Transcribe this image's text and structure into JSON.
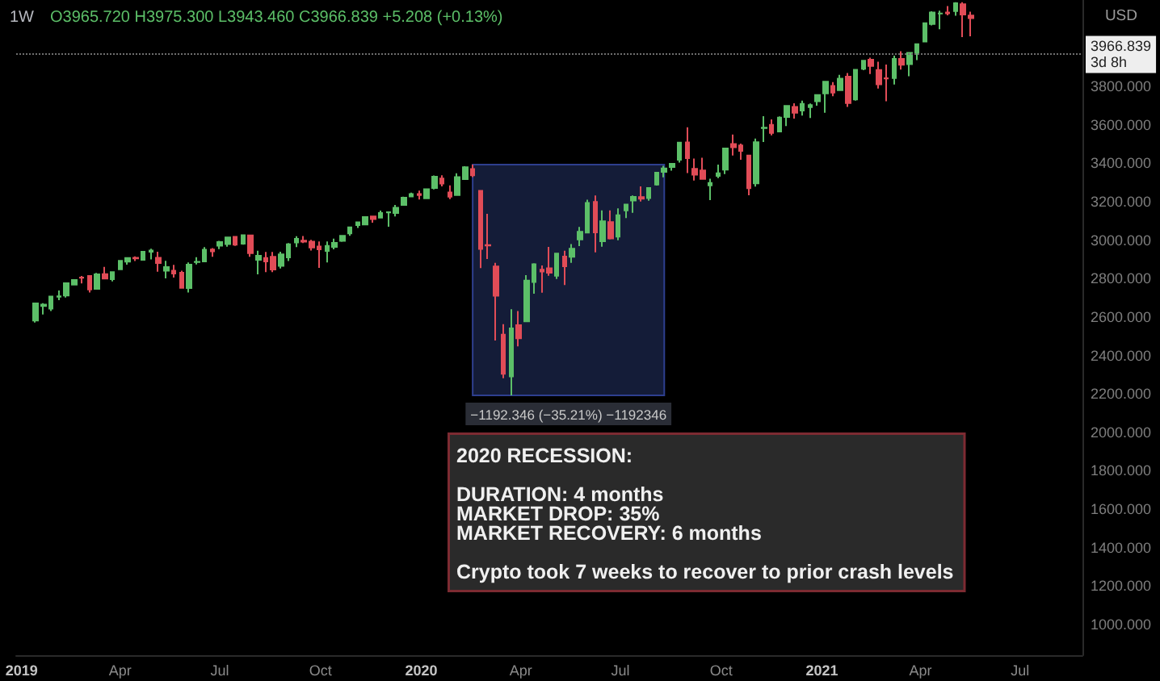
{
  "chart_data": {
    "type": "candlestick",
    "title": "1W",
    "subtitle": "O3965.720 H3975.300 L3943.460 C3966.839 +5.208 (+0.13%)",
    "ylabel": "USD",
    "x": [
      "2019-01-14",
      "2019-01-21",
      "2019-01-28",
      "2019-02-04",
      "2019-02-11",
      "2019-02-18",
      "2019-02-25",
      "2019-03-04",
      "2019-03-11",
      "2019-03-18",
      "2019-03-25",
      "2019-04-01",
      "2019-04-08",
      "2019-04-15",
      "2019-04-22",
      "2019-04-29",
      "2019-05-06",
      "2019-05-13",
      "2019-05-20",
      "2019-05-27",
      "2019-06-03",
      "2019-06-10",
      "2019-06-17",
      "2019-06-24",
      "2019-07-01",
      "2019-07-08",
      "2019-07-15",
      "2019-07-22",
      "2019-07-29",
      "2019-08-05",
      "2019-08-12",
      "2019-08-19",
      "2019-08-26",
      "2019-09-02",
      "2019-09-09",
      "2019-09-16",
      "2019-09-23",
      "2019-09-30",
      "2019-10-07",
      "2019-10-14",
      "2019-10-21",
      "2019-10-28",
      "2019-11-04",
      "2019-11-11",
      "2019-11-18",
      "2019-11-25",
      "2019-12-02",
      "2019-12-09",
      "2019-12-16",
      "2019-12-23",
      "2019-12-30",
      "2020-01-06",
      "2020-01-13",
      "2020-01-20",
      "2020-01-27",
      "2020-02-03",
      "2020-02-10",
      "2020-02-17",
      "2020-02-24",
      "2020-03-02",
      "2020-03-09",
      "2020-03-16",
      "2020-03-23",
      "2020-03-30",
      "2020-04-06",
      "2020-04-13",
      "2020-04-20",
      "2020-04-27",
      "2020-05-04",
      "2020-05-11",
      "2020-05-18",
      "2020-05-25",
      "2020-06-01",
      "2020-06-08",
      "2020-06-15",
      "2020-06-22",
      "2020-06-29",
      "2020-07-06",
      "2020-07-13",
      "2020-07-20",
      "2020-07-27",
      "2020-08-03",
      "2020-08-10",
      "2020-08-17",
      "2020-08-24",
      "2020-08-31",
      "2020-09-07",
      "2020-09-14",
      "2020-09-21",
      "2020-09-28",
      "2020-10-05",
      "2020-10-12",
      "2020-10-19",
      "2020-10-26",
      "2020-11-02",
      "2020-11-09",
      "2020-11-16",
      "2020-11-23",
      "2020-11-30",
      "2020-12-07",
      "2020-12-14",
      "2020-12-21",
      "2020-12-28",
      "2021-01-04",
      "2021-01-11",
      "2021-01-18",
      "2021-01-25",
      "2021-02-01",
      "2021-02-08",
      "2021-02-15",
      "2021-02-22",
      "2021-03-01",
      "2021-03-08",
      "2021-03-15",
      "2021-03-22",
      "2021-03-29",
      "2021-04-05",
      "2021-04-12",
      "2021-04-19",
      "2021-04-26",
      "2021-05-03",
      "2021-05-10",
      "2021-05-17"
    ],
    "ohlc": [
      [
        2582,
        2675,
        2571,
        2671
      ],
      [
        2657,
        2672,
        2613,
        2665
      ],
      [
        2644,
        2708,
        2631,
        2707
      ],
      [
        2706,
        2738,
        2688,
        2708
      ],
      [
        2712,
        2776,
        2701,
        2776
      ],
      [
        2769,
        2794,
        2766,
        2793
      ],
      [
        2805,
        2814,
        2775,
        2804
      ],
      [
        2814,
        2817,
        2728,
        2743
      ],
      [
        2747,
        2830,
        2746,
        2822
      ],
      [
        2823,
        2861,
        2800,
        2800
      ],
      [
        2797,
        2837,
        2785,
        2834
      ],
      [
        2848,
        2893,
        2848,
        2893
      ],
      [
        2888,
        2910,
        2873,
        2907
      ],
      [
        2908,
        2916,
        2891,
        2905
      ],
      [
        2898,
        2940,
        2898,
        2940
      ],
      [
        2940,
        2955,
        2900,
        2946
      ],
      [
        2908,
        2940,
        2836,
        2881
      ],
      [
        2841,
        2892,
        2801,
        2860
      ],
      [
        2841,
        2871,
        2805,
        2826
      ],
      [
        2831,
        2841,
        2750,
        2752
      ],
      [
        2751,
        2884,
        2728,
        2873
      ],
      [
        2886,
        2911,
        2874,
        2887
      ],
      [
        2889,
        2964,
        2887,
        2950
      ],
      [
        2951,
        2959,
        2913,
        2942
      ],
      [
        2971,
        2996,
        2953,
        2990
      ],
      [
        2980,
        3017,
        2966,
        3014
      ],
      [
        3017,
        3018,
        2970,
        2977
      ],
      [
        2982,
        3028,
        2977,
        3026
      ],
      [
        3025,
        3027,
        2914,
        2932
      ],
      [
        2898,
        2945,
        2822,
        2919
      ],
      [
        2907,
        2939,
        2834,
        2889
      ],
      [
        2913,
        2939,
        2834,
        2847
      ],
      [
        2866,
        2940,
        2853,
        2926
      ],
      [
        2910,
        2985,
        2891,
        2979
      ],
      [
        2988,
        3021,
        2964,
        3007
      ],
      [
        2997,
        3022,
        2985,
        2992
      ],
      [
        2992,
        3002,
        2946,
        2962
      ],
      [
        2967,
        2993,
        2856,
        2952
      ],
      [
        2944,
        2993,
        2884,
        2970
      ],
      [
        2965,
        3008,
        2952,
        2986
      ],
      [
        2996,
        3027,
        2991,
        3023
      ],
      [
        3035,
        3067,
        3023,
        3067
      ],
      [
        3078,
        3097,
        3064,
        3093
      ],
      [
        3081,
        3121,
        3078,
        3120
      ],
      [
        3123,
        3127,
        3091,
        3110
      ],
      [
        3117,
        3154,
        3117,
        3141
      ],
      [
        3144,
        3150,
        3070,
        3146
      ],
      [
        3141,
        3183,
        3124,
        3169
      ],
      [
        3183,
        3226,
        3183,
        3221
      ],
      [
        3227,
        3247,
        3224,
        3240
      ],
      [
        3240,
        3258,
        3212,
        3235
      ],
      [
        3218,
        3268,
        3214,
        3265
      ],
      [
        3271,
        3337,
        3264,
        3330
      ],
      [
        3321,
        3338,
        3280,
        3295
      ],
      [
        3248,
        3285,
        3214,
        3226
      ],
      [
        3235,
        3348,
        3235,
        3328
      ],
      [
        3318,
        3385,
        3315,
        3380
      ],
      [
        3370,
        3393,
        3328,
        3338
      ],
      [
        3257,
        3260,
        2855,
        2954
      ],
      [
        2974,
        3137,
        2902,
        2972
      ],
      [
        2863,
        2882,
        2478,
        2711
      ],
      [
        2508,
        2563,
        2281,
        2305
      ],
      [
        2291,
        2641,
        2192,
        2541
      ],
      [
        2558,
        2631,
        2447,
        2489
      ],
      [
        2578,
        2818,
        2578,
        2790
      ],
      [
        2782,
        2880,
        2721,
        2875
      ],
      [
        2846,
        2868,
        2727,
        2837
      ],
      [
        2854,
        2965,
        2815,
        2831
      ],
      [
        2815,
        2932,
        2798,
        2930
      ],
      [
        2915,
        2945,
        2767,
        2864
      ],
      [
        2914,
        2980,
        2882,
        2955
      ],
      [
        3004,
        3069,
        2969,
        3044
      ],
      [
        3039,
        3211,
        3039,
        3194
      ],
      [
        3199,
        3233,
        2937,
        3041
      ],
      [
        2994,
        3155,
        2966,
        3098
      ],
      [
        3094,
        3155,
        3004,
        3009
      ],
      [
        3018,
        3166,
        3000,
        3130
      ],
      [
        3155,
        3186,
        3115,
        3185
      ],
      [
        3206,
        3233,
        3142,
        3225
      ],
      [
        3224,
        3280,
        3201,
        3216
      ],
      [
        3219,
        3272,
        3205,
        3271
      ],
      [
        3289,
        3352,
        3284,
        3351
      ],
      [
        3356,
        3387,
        3327,
        3373
      ],
      [
        3381,
        3399,
        3362,
        3397
      ],
      [
        3418,
        3509,
        3404,
        3508
      ],
      [
        3509,
        3588,
        3349,
        3427
      ],
      [
        3371,
        3425,
        3310,
        3341
      ],
      [
        3363,
        3429,
        3319,
        3319
      ],
      [
        3285,
        3320,
        3209,
        3298
      ],
      [
        3334,
        3393,
        3323,
        3348
      ],
      [
        3367,
        3482,
        3344,
        3477
      ],
      [
        3500,
        3550,
        3441,
        3484
      ],
      [
        3493,
        3502,
        3419,
        3465
      ],
      [
        3441,
        3441,
        3234,
        3270
      ],
      [
        3296,
        3529,
        3279,
        3510
      ],
      [
        3583,
        3645,
        3511,
        3585
      ],
      [
        3600,
        3628,
        3546,
        3558
      ],
      [
        3566,
        3644,
        3562,
        3638
      ],
      [
        3641,
        3699,
        3594,
        3699
      ],
      [
        3694,
        3712,
        3633,
        3663
      ],
      [
        3675,
        3726,
        3648,
        3709
      ],
      [
        3693,
        3711,
        3636,
        3703
      ],
      [
        3723,
        3760,
        3700,
        3756
      ],
      [
        3764,
        3827,
        3663,
        3825
      ],
      [
        3803,
        3823,
        3749,
        3768
      ],
      [
        3781,
        3861,
        3777,
        3841
      ],
      [
        3851,
        3870,
        3694,
        3714
      ],
      [
        3732,
        3887,
        3726,
        3887
      ],
      [
        3892,
        3935,
        3885,
        3934
      ],
      [
        3939,
        3950,
        3865,
        3907
      ],
      [
        3886,
        3929,
        3789,
        3811
      ],
      [
        3843,
        3914,
        3723,
        3842
      ],
      [
        3844,
        3960,
        3810,
        3943
      ],
      [
        3943,
        3983,
        3888,
        3913
      ],
      [
        3916,
        3978,
        3853,
        3975
      ],
      [
        3969,
        4021,
        3937,
        4020
      ],
      [
        4034,
        4129,
        4034,
        4129
      ],
      [
        4125,
        4191,
        4118,
        4185
      ],
      [
        4180,
        4194,
        4098,
        4180
      ],
      [
        4185,
        4218,
        4170,
        4181
      ],
      [
        4192,
        4238,
        4168,
        4233
      ],
      [
        4228,
        4238,
        4057,
        4174
      ],
      [
        4169,
        4189,
        4061,
        4156
      ]
    ],
    "colors": [
      "#5cbf68",
      "#5cbf68",
      "#5cbf68",
      "#5cbf68",
      "#5cbf68",
      "#5cbf68",
      "#e14c57",
      "#e14c57",
      "#5cbf68",
      "#e14c57",
      "#5cbf68",
      "#5cbf68",
      "#5cbf68",
      "#e14c57",
      "#5cbf68",
      "#5cbf68",
      "#e14c57",
      "#5cbf68",
      "#e14c57",
      "#e14c57",
      "#5cbf68",
      "#5cbf68",
      "#5cbf68",
      "#e14c57",
      "#5cbf68",
      "#5cbf68",
      "#e14c57",
      "#5cbf68",
      "#e14c57",
      "#5cbf68",
      "#e14c57",
      "#e14c57",
      "#5cbf68",
      "#5cbf68",
      "#5cbf68",
      "#e14c57",
      "#e14c57",
      "#e14c57",
      "#5cbf68",
      "#5cbf68",
      "#5cbf68",
      "#5cbf68",
      "#5cbf68",
      "#5cbf68",
      "#e14c57",
      "#5cbf68",
      "#5cbf68",
      "#5cbf68",
      "#5cbf68",
      "#5cbf68",
      "#e14c57",
      "#5cbf68",
      "#5cbf68",
      "#e14c57",
      "#e14c57",
      "#5cbf68",
      "#5cbf68",
      "#e14c57",
      "#e14c57",
      "#e14c57",
      "#e14c57",
      "#e14c57",
      "#5cbf68",
      "#e14c57",
      "#5cbf68",
      "#5cbf68",
      "#e14c57",
      "#e14c57",
      "#5cbf68",
      "#e14c57",
      "#5cbf68",
      "#5cbf68",
      "#5cbf68",
      "#e14c57",
      "#5cbf68",
      "#e14c57",
      "#5cbf68",
      "#5cbf68",
      "#5cbf68",
      "#e14c57",
      "#5cbf68",
      "#5cbf68",
      "#5cbf68",
      "#5cbf68",
      "#5cbf68",
      "#e14c57",
      "#e14c57",
      "#e14c57",
      "#5cbf68",
      "#5cbf68",
      "#5cbf68",
      "#e14c57",
      "#e14c57",
      "#e14c57",
      "#5cbf68",
      "#5cbf68",
      "#e14c57",
      "#5cbf68",
      "#5cbf68",
      "#e14c57",
      "#5cbf68",
      "#5cbf68",
      "#5cbf68",
      "#5cbf68",
      "#e14c57",
      "#5cbf68",
      "#e14c57",
      "#5cbf68",
      "#5cbf68",
      "#e14c57",
      "#e14c57",
      "#e14c57",
      "#5cbf68",
      "#e14c57",
      "#5cbf68",
      "#5cbf68",
      "#5cbf68",
      "#5cbf68",
      "#5cbf68",
      "#e14c57",
      "#5cbf68",
      "#e14c57",
      "#e14c57"
    ],
    "xlim": [
      "2018-12-27",
      "2021-08-27"
    ],
    "xticks": [
      {
        "value": "2019-01-01",
        "label": "2019"
      },
      {
        "value": "2019-04-01",
        "label": "Apr"
      },
      {
        "value": "2019-07-01",
        "label": "Jul"
      },
      {
        "value": "2019-10-01",
        "label": "Oct"
      },
      {
        "value": "2020-01-01",
        "label": "2020"
      },
      {
        "value": "2020-04-01",
        "label": "Apr"
      },
      {
        "value": "2020-07-01",
        "label": "Jul"
      },
      {
        "value": "2020-10-01",
        "label": "Oct"
      },
      {
        "value": "2021-01-01",
        "label": "2021"
      },
      {
        "value": "2021-04-01",
        "label": "Apr"
      },
      {
        "value": "2021-07-01",
        "label": "Jul"
      }
    ],
    "ylim": [
      840,
      4250
    ],
    "yticks": [
      {
        "value": 1000,
        "label": "1000.000"
      },
      {
        "value": 1200,
        "label": "1200.000"
      },
      {
        "value": 1400,
        "label": "1400.000"
      },
      {
        "value": 1600,
        "label": "1600.000"
      },
      {
        "value": 1800,
        "label": "1800.000"
      },
      {
        "value": 2000,
        "label": "2000.000"
      },
      {
        "value": 2200,
        "label": "2200.000"
      },
      {
        "value": 2400,
        "label": "2400.000"
      },
      {
        "value": 2600,
        "label": "2600.000"
      },
      {
        "value": 2800,
        "label": "2800.000"
      },
      {
        "value": 3000,
        "label": "3000.000"
      },
      {
        "value": 3200,
        "label": "3200.000"
      },
      {
        "value": 3400,
        "label": "3400.000"
      },
      {
        "value": 3600,
        "label": "3600.000"
      },
      {
        "value": 3800,
        "label": "3800.000"
      }
    ],
    "ref_lines": [
      {
        "axis": "y",
        "value": 3966.839,
        "label": "3966.839\n3d 8h",
        "color": "#6e6e6e",
        "line_style": "dotted"
      }
    ],
    "bands": [
      {
        "axis": "x",
        "from": "2020-02-17",
        "to": "2020-08-10",
        "label": "−1192.346 (−35.21%) −1192346",
        "color": "#141c38"
      }
    ],
    "annotations": [
      "2020 RECESSION:",
      "DURATION: 4 months\nMARKET DROP: 35%\nMARKET RECOVERY: 6 months",
      "Crypto took 7 weeks to recover to prior crash levels"
    ],
    "grid": false
  }
}
